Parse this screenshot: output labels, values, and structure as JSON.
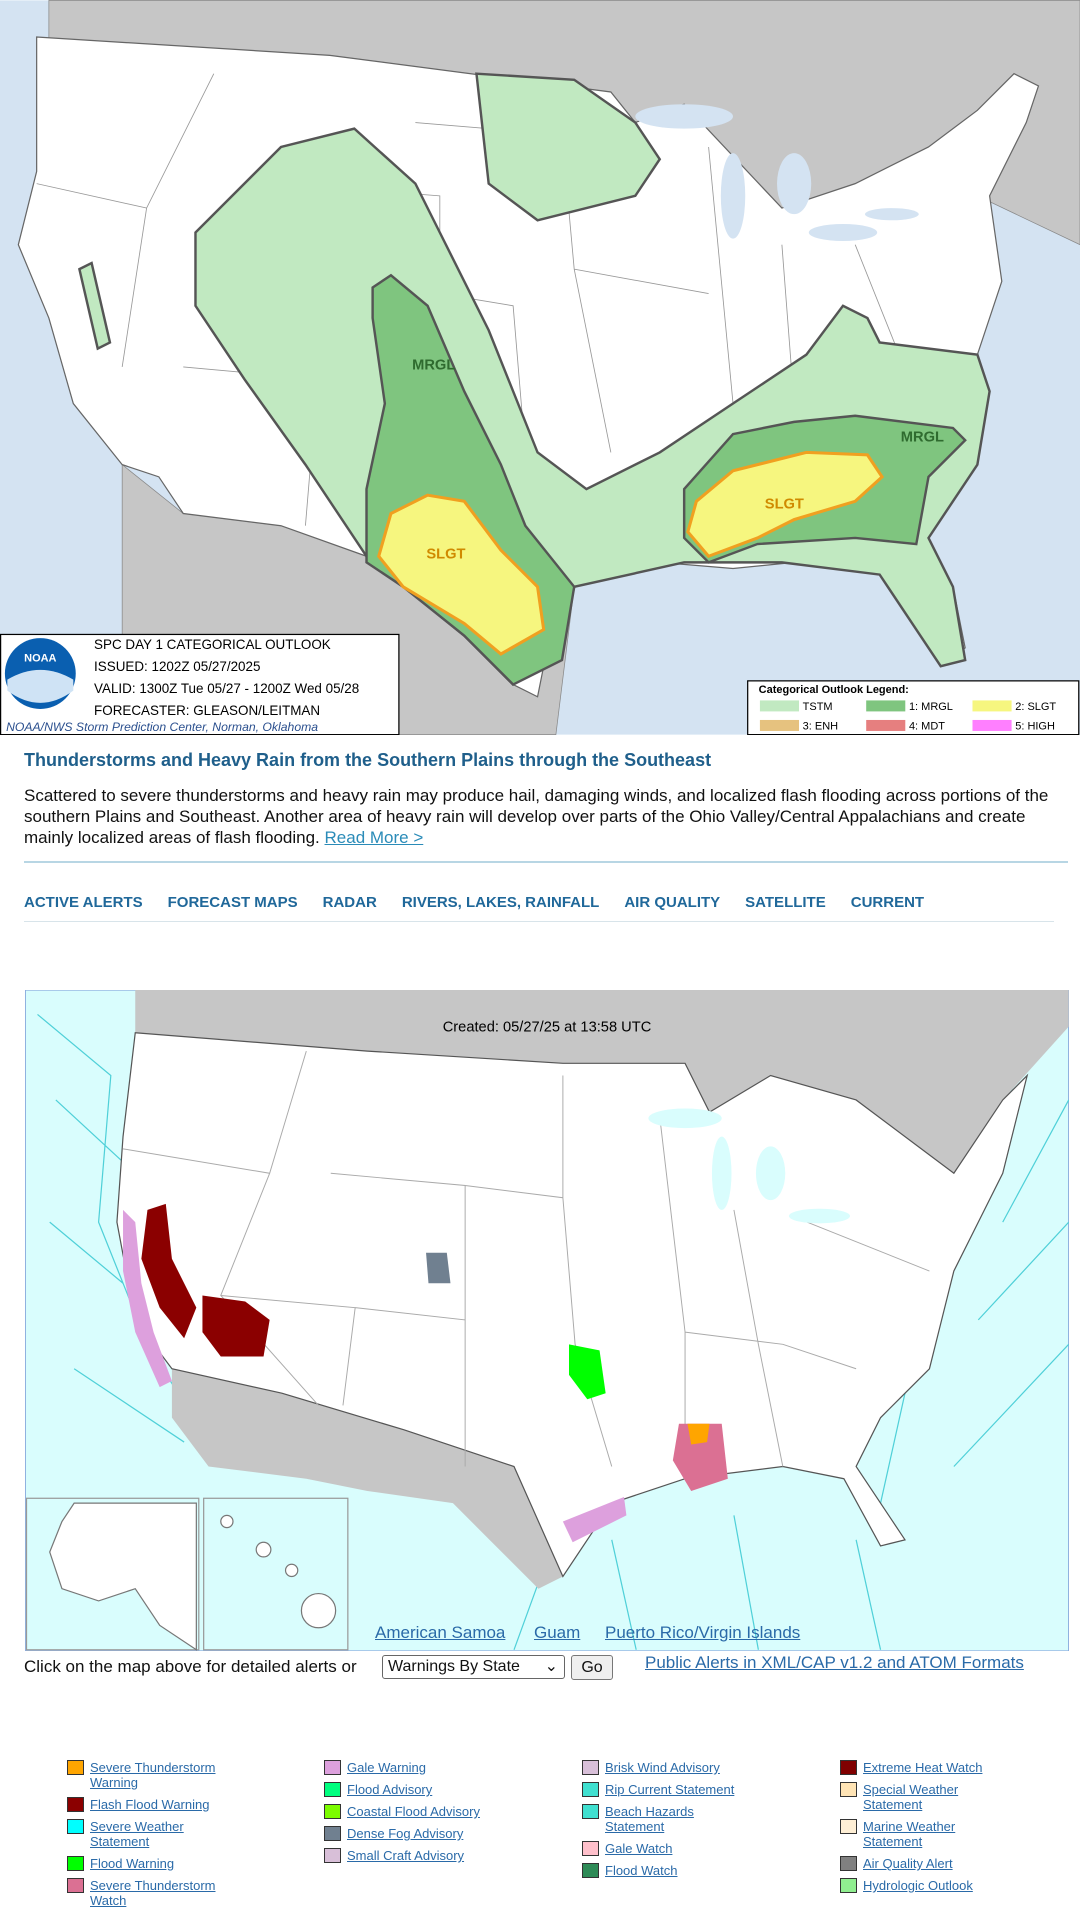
{
  "outlook_map": {
    "title": "SPC DAY 1 CATEGORICAL OUTLOOK",
    "issued": "ISSUED: 1202Z 05/27/2025",
    "valid": "VALID: 1300Z Tue 05/27 - 1200Z Wed 05/28",
    "forecaster": "FORECASTER: GLEASON/LEITMAN",
    "credit": "NOAA/NWS Storm Prediction Center, Norman, Oklahoma",
    "logo": "NOAA",
    "area_labels": [
      "MRGL",
      "SLGT",
      "MRGL",
      "SLGT"
    ],
    "legend_title": "Categorical Outlook Legend:",
    "legend": [
      {
        "label": "TSTM",
        "color": "#c1e9c1"
      },
      {
        "label": "1: MRGL",
        "color": "#7fc57f"
      },
      {
        "label": "2: SLGT",
        "color": "#f6f67f"
      },
      {
        "label": "3: ENH",
        "color": "#e6c27f"
      },
      {
        "label": "4: MDT",
        "color": "#e67f7f"
      },
      {
        "label": "5: HIGH",
        "color": "#ff7fff"
      }
    ]
  },
  "headline": "Thunderstorms and Heavy Rain from the Southern Plains through the Southeast",
  "summary": "Scattered to severe thunderstorms and heavy rain may produce hail, damaging winds, and localized flash flooding across portions of the southern Plains and Southeast. Another area of heavy rain will develop over parts of the Ohio Valley/Central Appalachians and create mainly localized areas of flash flooding.",
  "read_more": "Read More >",
  "nav": [
    "ACTIVE ALERTS",
    "FORECAST MAPS",
    "RADAR",
    "RIVERS, LAKES, RAINFALL",
    "AIR QUALITY",
    "SATELLITE",
    "CURRENT"
  ],
  "alerts_map": {
    "created": "Created: 05/27/25 at 13:58 UTC",
    "links": [
      "American Samoa",
      "Guam",
      "Puerto Rico/Virgin Islands"
    ]
  },
  "select_prompt": "Click on the map above for detailed alerts or",
  "select_value": "Warnings By State",
  "go": "Go",
  "feeds": "Public Alerts in XML/CAP v1.2 and ATOM Formats",
  "alert_legend": [
    [
      {
        "label": "Severe Thunderstorm Warning",
        "color": "#ffa500"
      },
      {
        "label": "Flash Flood Warning",
        "color": "#8b0000"
      },
      {
        "label": "Severe Weather Statement",
        "color": "#00ffff"
      },
      {
        "label": "Flood Warning",
        "color": "#00ff00"
      },
      {
        "label": "Severe Thunderstorm Watch",
        "color": "#db7093"
      }
    ],
    [
      {
        "label": "Gale Warning",
        "color": "#dda0dd"
      },
      {
        "label": "Flood Advisory",
        "color": "#00ff7f"
      },
      {
        "label": "Coastal Flood Advisory",
        "color": "#7cfc00"
      },
      {
        "label": "Dense Fog Advisory",
        "color": "#708090"
      },
      {
        "label": "Small Craft Advisory",
        "color": "#d8bfd8"
      }
    ],
    [
      {
        "label": "Brisk Wind Advisory",
        "color": "#d8bfd8"
      },
      {
        "label": "Rip Current Statement",
        "color": "#40e0d0"
      },
      {
        "label": "Beach Hazards Statement",
        "color": "#40e0d0"
      },
      {
        "label": "Gale Watch",
        "color": "#ffc0cb"
      },
      {
        "label": "Flood Watch",
        "color": "#2e8b57"
      }
    ],
    [
      {
        "label": "Extreme Heat Watch",
        "color": "#800000"
      },
      {
        "label": "Special Weather Statement",
        "color": "#ffe4b5"
      },
      {
        "label": "Marine Weather Statement",
        "color": "#ffefd5"
      },
      {
        "label": "Air Quality Alert",
        "color": "#808080"
      },
      {
        "label": "Hydrologic Outlook",
        "color": "#90ee90"
      }
    ]
  ]
}
